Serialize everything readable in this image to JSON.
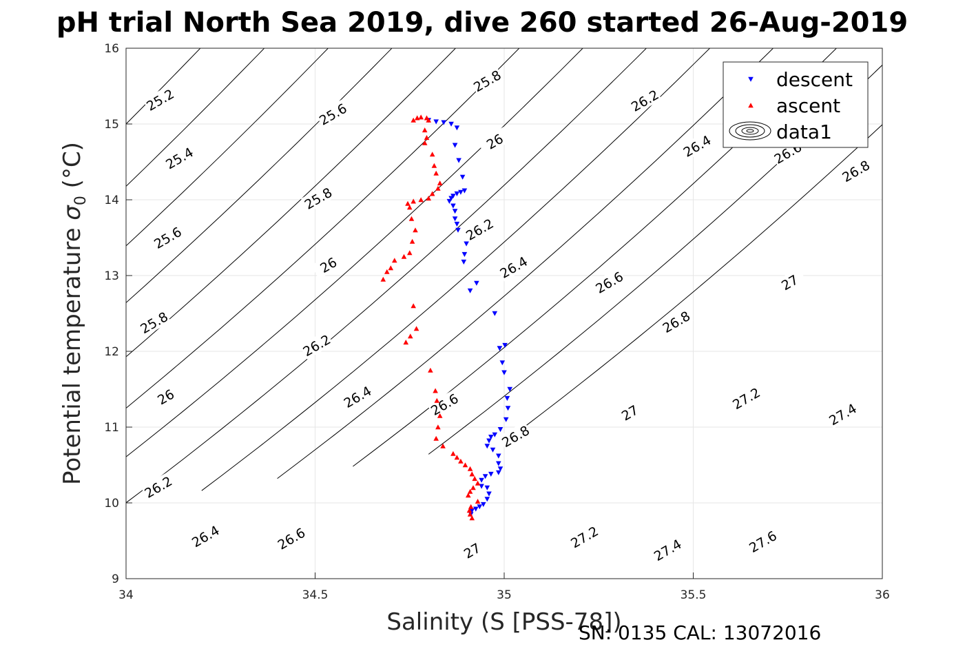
{
  "chart_data": {
    "type": "scatter",
    "title": "pH trial North Sea 2019, dive 260 started 26-Aug-2019",
    "xlabel": "Salinity (S [PSS-78])",
    "ylabel": "Potential temperature σ₀ (°C)",
    "ylabel_main": "Potential temperature ",
    "ylabel_sigma": "σ",
    "ylabel_sub": "0",
    "ylabel_unit": " (°C)",
    "xlim": [
      34,
      36
    ],
    "ylim": [
      9,
      16
    ],
    "xticks": [
      34,
      34.5,
      35,
      35.5,
      36
    ],
    "xtick_labels": [
      "34",
      "34.5",
      "35",
      "35.5",
      "36"
    ],
    "yticks": [
      9,
      10,
      11,
      12,
      13,
      14,
      15,
      16
    ],
    "ytick_labels": [
      "9",
      "10",
      "11",
      "12",
      "13",
      "14",
      "15",
      "16"
    ],
    "grid": true,
    "legend_position": "top-right",
    "legend": [
      "descent",
      "ascent",
      "data1"
    ],
    "contour_levels": [
      25.2,
      25.4,
      25.6,
      25.8,
      26,
      26.2,
      26.4,
      26.6,
      26.8,
      27,
      27.2,
      27.4,
      27.6
    ],
    "contour_color": "#000000",
    "contour_labels": [
      {
        "text": "25.2",
        "x": 34.09,
        "y": 15.32
      },
      {
        "text": "25.6",
        "x": 34.547,
        "y": 15.13
      },
      {
        "text": "25.8",
        "x": 34.955,
        "y": 15.57
      },
      {
        "text": "25.4",
        "x": 34.141,
        "y": 14.55
      },
      {
        "text": "26",
        "x": 34.975,
        "y": 14.77
      },
      {
        "text": "26.2",
        "x": 35.372,
        "y": 15.31
      },
      {
        "text": "25.8",
        "x": 34.508,
        "y": 14.02
      },
      {
        "text": "26.4",
        "x": 35.51,
        "y": 14.71
      },
      {
        "text": "26.6",
        "x": 35.75,
        "y": 14.62
      },
      {
        "text": "26.8",
        "x": 35.93,
        "y": 14.38
      },
      {
        "text": "25.6",
        "x": 34.11,
        "y": 13.5
      },
      {
        "text": "26.2",
        "x": 34.935,
        "y": 13.61
      },
      {
        "text": "26",
        "x": 34.535,
        "y": 13.14
      },
      {
        "text": "26.4",
        "x": 35.025,
        "y": 13.11
      },
      {
        "text": "26.6",
        "x": 35.278,
        "y": 12.91
      },
      {
        "text": "27",
        "x": 35.755,
        "y": 12.91
      },
      {
        "text": "25.8",
        "x": 34.074,
        "y": 12.38
      },
      {
        "text": "26.8",
        "x": 35.455,
        "y": 12.39
      },
      {
        "text": "26.2",
        "x": 34.504,
        "y": 12.08
      },
      {
        "text": "26",
        "x": 34.105,
        "y": 11.4
      },
      {
        "text": "26.4",
        "x": 34.612,
        "y": 11.4
      },
      {
        "text": "26.6",
        "x": 34.842,
        "y": 11.3
      },
      {
        "text": "26.8",
        "x": 35.03,
        "y": 10.88
      },
      {
        "text": "27",
        "x": 35.332,
        "y": 11.19
      },
      {
        "text": "27.2",
        "x": 35.64,
        "y": 11.38
      },
      {
        "text": "27.4",
        "x": 35.895,
        "y": 11.17
      },
      {
        "text": "26.2",
        "x": 34.085,
        "y": 10.21
      },
      {
        "text": "26.4",
        "x": 34.21,
        "y": 9.56
      },
      {
        "text": "26.6",
        "x": 34.437,
        "y": 9.53
      },
      {
        "text": "27",
        "x": 34.915,
        "y": 9.37
      },
      {
        "text": "27.2",
        "x": 35.212,
        "y": 9.55
      },
      {
        "text": "27.4",
        "x": 35.432,
        "y": 9.38
      },
      {
        "text": "27.6",
        "x": 35.684,
        "y": 9.49
      }
    ],
    "series": [
      {
        "name": "descent",
        "marker": "triangle-down",
        "color": "#0000ff",
        "points": [
          [
            34.8,
            15.05
          ],
          [
            34.82,
            15.03
          ],
          [
            34.84,
            15.02
          ],
          [
            34.86,
            15.0
          ],
          [
            34.875,
            14.95
          ],
          [
            34.87,
            14.72
          ],
          [
            34.88,
            14.52
          ],
          [
            34.89,
            14.3
          ],
          [
            34.895,
            14.12
          ],
          [
            34.885,
            14.1
          ],
          [
            34.875,
            14.08
          ],
          [
            34.865,
            14.05
          ],
          [
            34.86,
            14.02
          ],
          [
            34.855,
            13.98
          ],
          [
            34.865,
            13.92
          ],
          [
            34.87,
            13.85
          ],
          [
            34.87,
            13.75
          ],
          [
            34.875,
            13.68
          ],
          [
            34.878,
            13.6
          ],
          [
            34.9,
            13.42
          ],
          [
            34.895,
            13.28
          ],
          [
            34.893,
            13.18
          ],
          [
            34.91,
            12.8
          ],
          [
            34.927,
            12.9
          ],
          [
            34.975,
            12.5
          ],
          [
            35.002,
            12.08
          ],
          [
            34.988,
            12.04
          ],
          [
            34.995,
            11.85
          ],
          [
            35.0,
            11.72
          ],
          [
            35.015,
            11.5
          ],
          [
            35.008,
            11.38
          ],
          [
            35.01,
            11.25
          ],
          [
            35.005,
            11.1
          ],
          [
            34.99,
            10.97
          ],
          [
            34.975,
            10.9
          ],
          [
            34.965,
            10.87
          ],
          [
            34.96,
            10.82
          ],
          [
            34.955,
            10.75
          ],
          [
            34.97,
            10.7
          ],
          [
            34.985,
            10.62
          ],
          [
            34.985,
            10.52
          ],
          [
            34.99,
            10.45
          ],
          [
            34.985,
            10.4
          ],
          [
            34.965,
            10.38
          ],
          [
            34.95,
            10.35
          ],
          [
            34.94,
            10.3
          ],
          [
            34.94,
            10.22
          ],
          [
            34.955,
            10.2
          ],
          [
            34.96,
            10.12
          ],
          [
            34.955,
            10.05
          ],
          [
            34.945,
            9.98
          ],
          [
            34.935,
            9.95
          ],
          [
            34.925,
            9.92
          ],
          [
            34.915,
            9.9
          ],
          [
            34.912,
            9.85
          ]
        ]
      },
      {
        "name": "ascent",
        "marker": "triangle-up",
        "color": "#ff0000",
        "points": [
          [
            34.76,
            15.05
          ],
          [
            34.77,
            15.08
          ],
          [
            34.78,
            15.09
          ],
          [
            34.795,
            15.08
          ],
          [
            34.8,
            15.05
          ],
          [
            34.79,
            14.92
          ],
          [
            34.795,
            14.82
          ],
          [
            34.79,
            14.75
          ],
          [
            34.81,
            14.6
          ],
          [
            34.815,
            14.45
          ],
          [
            34.82,
            14.35
          ],
          [
            34.83,
            14.22
          ],
          [
            34.825,
            14.15
          ],
          [
            34.81,
            14.08
          ],
          [
            34.8,
            14.02
          ],
          [
            34.78,
            14.0
          ],
          [
            34.76,
            13.98
          ],
          [
            34.745,
            13.95
          ],
          [
            34.75,
            13.9
          ],
          [
            34.755,
            13.75
          ],
          [
            34.765,
            13.6
          ],
          [
            34.757,
            13.45
          ],
          [
            34.75,
            13.3
          ],
          [
            34.735,
            13.25
          ],
          [
            34.71,
            13.2
          ],
          [
            34.7,
            13.1
          ],
          [
            34.69,
            13.05
          ],
          [
            34.68,
            12.95
          ],
          [
            34.76,
            12.6
          ],
          [
            34.768,
            12.3
          ],
          [
            34.752,
            12.2
          ],
          [
            34.74,
            12.12
          ],
          [
            34.805,
            11.75
          ],
          [
            34.818,
            11.48
          ],
          [
            34.822,
            11.35
          ],
          [
            34.83,
            11.15
          ],
          [
            34.825,
            11.0
          ],
          [
            34.82,
            10.85
          ],
          [
            34.838,
            10.75
          ],
          [
            34.865,
            10.65
          ],
          [
            34.875,
            10.6
          ],
          [
            34.885,
            10.55
          ],
          [
            34.897,
            10.5
          ],
          [
            34.91,
            10.45
          ],
          [
            34.915,
            10.38
          ],
          [
            34.922,
            10.32
          ],
          [
            34.93,
            10.26
          ],
          [
            34.918,
            10.2
          ],
          [
            34.91,
            10.15
          ],
          [
            34.905,
            10.1
          ],
          [
            34.93,
            10.02
          ],
          [
            34.912,
            9.95
          ],
          [
            34.908,
            9.9
          ],
          [
            34.91,
            9.85
          ],
          [
            34.915,
            9.8
          ]
        ]
      }
    ]
  },
  "footer": {
    "serial": "SN: 0135  CAL: 13072016"
  }
}
